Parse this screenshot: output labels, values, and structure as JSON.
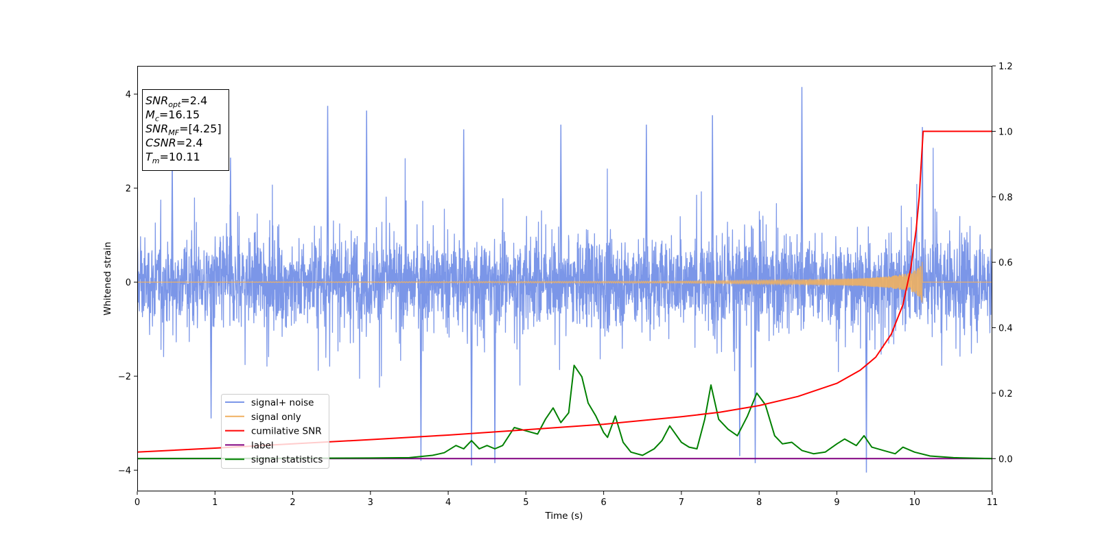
{
  "chart_data": {
    "type": "line",
    "title": "",
    "xlabel": "Time (s)",
    "ylabel_left": "Whitened strain",
    "ylabel_right": "",
    "xlim": [
      0,
      11
    ],
    "ylim_left": [
      -4.45,
      4.6
    ],
    "ylim_right": [
      -0.1,
      1.2
    ],
    "x_ticks": [
      0,
      1,
      2,
      3,
      4,
      5,
      6,
      7,
      8,
      9,
      10,
      11
    ],
    "y_ticks_left": [
      -4,
      -2,
      0,
      2,
      4
    ],
    "y_ticks_right": [
      0.0,
      0.2,
      0.4,
      0.6,
      0.8,
      1.0,
      1.2
    ],
    "x_tick_labels": [
      "0",
      "1",
      "2",
      "3",
      "4",
      "5",
      "6",
      "7",
      "8",
      "9",
      "10",
      "11"
    ],
    "y_tick_labels_left": [
      "−4",
      "−2",
      "0",
      "2",
      "4"
    ],
    "y_tick_labels_right": [
      "0.0",
      "0.2",
      "0.4",
      "0.6",
      "0.8",
      "1.0",
      "1.2"
    ],
    "grid": false,
    "legend_position": "lower-left",
    "colors": {
      "noise": "#7b96e8",
      "signal": "#f0b060",
      "cumulative": "#ff0000",
      "label": "#800080",
      "statistics": "#008000"
    },
    "series": [
      {
        "name": "signal+ noise",
        "axis": "left",
        "description_values": "dense noise, roughly ±1.5 envelope with spikes up to 4.15 (t≈8.55) and down to -4.05 (t≈9.38)",
        "spikes": [
          {
            "x": 0.45,
            "y": 2.7
          },
          {
            "x": 1.2,
            "y": 2.65
          },
          {
            "x": 2.45,
            "y": 3.75
          },
          {
            "x": 2.95,
            "y": 3.65
          },
          {
            "x": 4.2,
            "y": 3.25
          },
          {
            "x": 5.45,
            "y": 3.35
          },
          {
            "x": 6.55,
            "y": 3.35
          },
          {
            "x": 7.4,
            "y": 3.55
          },
          {
            "x": 8.55,
            "y": 4.15
          },
          {
            "x": 10.1,
            "y": 3.3
          },
          {
            "x": 0.95,
            "y": -2.9
          },
          {
            "x": 3.65,
            "y": -3.8
          },
          {
            "x": 4.3,
            "y": -3.9
          },
          {
            "x": 4.6,
            "y": -3.85
          },
          {
            "x": 7.75,
            "y": -3.7
          },
          {
            "x": 7.95,
            "y": -3.85
          },
          {
            "x": 9.38,
            "y": -4.05
          }
        ]
      },
      {
        "name": "signal only",
        "axis": "left",
        "description_values": "chirp, amplitude ~0 until t≈7, growing to ±0.4 at t≈10.1, then zero",
        "envelope": [
          {
            "x": 0,
            "y": 0.0
          },
          {
            "x": 7.0,
            "y": 0.02
          },
          {
            "x": 8.5,
            "y": 0.05
          },
          {
            "x": 9.3,
            "y": 0.08
          },
          {
            "x": 9.7,
            "y": 0.13
          },
          {
            "x": 9.95,
            "y": 0.2
          },
          {
            "x": 10.05,
            "y": 0.3
          },
          {
            "x": 10.1,
            "y": 0.45
          }
        ]
      },
      {
        "name": "cumilative SNR",
        "axis": "right",
        "points": [
          {
            "x": 0,
            "y": 0.02
          },
          {
            "x": 1,
            "y": 0.032
          },
          {
            "x": 2,
            "y": 0.045
          },
          {
            "x": 3,
            "y": 0.058
          },
          {
            "x": 4,
            "y": 0.072
          },
          {
            "x": 5,
            "y": 0.088
          },
          {
            "x": 6,
            "y": 0.105
          },
          {
            "x": 7,
            "y": 0.128
          },
          {
            "x": 7.5,
            "y": 0.142
          },
          {
            "x": 8,
            "y": 0.162
          },
          {
            "x": 8.5,
            "y": 0.19
          },
          {
            "x": 9,
            "y": 0.23
          },
          {
            "x": 9.3,
            "y": 0.27
          },
          {
            "x": 9.5,
            "y": 0.31
          },
          {
            "x": 9.7,
            "y": 0.38
          },
          {
            "x": 9.85,
            "y": 0.47
          },
          {
            "x": 9.95,
            "y": 0.58
          },
          {
            "x": 10.02,
            "y": 0.7
          },
          {
            "x": 10.06,
            "y": 0.8
          },
          {
            "x": 10.09,
            "y": 0.92
          },
          {
            "x": 10.11,
            "y": 1.0
          },
          {
            "x": 11,
            "y": 1.0
          }
        ]
      },
      {
        "name": "label",
        "axis": "right",
        "points": [
          {
            "x": 0,
            "y": 0.0
          },
          {
            "x": 11,
            "y": 0.0
          }
        ]
      },
      {
        "name": "signal statistics",
        "axis": "right",
        "points": [
          {
            "x": 0,
            "y": 0.0
          },
          {
            "x": 3.0,
            "y": 0.002
          },
          {
            "x": 3.5,
            "y": 0.003
          },
          {
            "x": 3.8,
            "y": 0.01
          },
          {
            "x": 3.95,
            "y": 0.018
          },
          {
            "x": 4.1,
            "y": 0.04
          },
          {
            "x": 4.2,
            "y": 0.03
          },
          {
            "x": 4.3,
            "y": 0.055
          },
          {
            "x": 4.4,
            "y": 0.03
          },
          {
            "x": 4.5,
            "y": 0.04
          },
          {
            "x": 4.6,
            "y": 0.03
          },
          {
            "x": 4.7,
            "y": 0.04
          },
          {
            "x": 4.85,
            "y": 0.095
          },
          {
            "x": 5.0,
            "y": 0.085
          },
          {
            "x": 5.15,
            "y": 0.075
          },
          {
            "x": 5.25,
            "y": 0.12
          },
          {
            "x": 5.35,
            "y": 0.155
          },
          {
            "x": 5.45,
            "y": 0.11
          },
          {
            "x": 5.55,
            "y": 0.14
          },
          {
            "x": 5.62,
            "y": 0.285
          },
          {
            "x": 5.72,
            "y": 0.25
          },
          {
            "x": 5.8,
            "y": 0.17
          },
          {
            "x": 5.9,
            "y": 0.13
          },
          {
            "x": 6.0,
            "y": 0.08
          },
          {
            "x": 6.05,
            "y": 0.065
          },
          {
            "x": 6.15,
            "y": 0.13
          },
          {
            "x": 6.25,
            "y": 0.05
          },
          {
            "x": 6.35,
            "y": 0.02
          },
          {
            "x": 6.5,
            "y": 0.01
          },
          {
            "x": 6.65,
            "y": 0.03
          },
          {
            "x": 6.75,
            "y": 0.055
          },
          {
            "x": 6.85,
            "y": 0.1
          },
          {
            "x": 7.0,
            "y": 0.05
          },
          {
            "x": 7.1,
            "y": 0.035
          },
          {
            "x": 7.2,
            "y": 0.03
          },
          {
            "x": 7.3,
            "y": 0.12
          },
          {
            "x": 7.38,
            "y": 0.225
          },
          {
            "x": 7.48,
            "y": 0.12
          },
          {
            "x": 7.6,
            "y": 0.09
          },
          {
            "x": 7.72,
            "y": 0.07
          },
          {
            "x": 7.85,
            "y": 0.13
          },
          {
            "x": 7.97,
            "y": 0.2
          },
          {
            "x": 8.08,
            "y": 0.165
          },
          {
            "x": 8.2,
            "y": 0.07
          },
          {
            "x": 8.3,
            "y": 0.045
          },
          {
            "x": 8.42,
            "y": 0.05
          },
          {
            "x": 8.55,
            "y": 0.025
          },
          {
            "x": 8.7,
            "y": 0.015
          },
          {
            "x": 8.85,
            "y": 0.02
          },
          {
            "x": 9.0,
            "y": 0.045
          },
          {
            "x": 9.1,
            "y": 0.06
          },
          {
            "x": 9.25,
            "y": 0.04
          },
          {
            "x": 9.35,
            "y": 0.07
          },
          {
            "x": 9.45,
            "y": 0.035
          },
          {
            "x": 9.6,
            "y": 0.025
          },
          {
            "x": 9.75,
            "y": 0.015
          },
          {
            "x": 9.85,
            "y": 0.035
          },
          {
            "x": 10.0,
            "y": 0.02
          },
          {
            "x": 10.2,
            "y": 0.008
          },
          {
            "x": 10.5,
            "y": 0.003
          },
          {
            "x": 11,
            "y": 0.0
          }
        ]
      }
    ],
    "legend": [
      {
        "label": "signal+ noise",
        "color": "#7b96e8"
      },
      {
        "label": "signal only",
        "color": "#f0b060"
      },
      {
        "label": "cumilative SNR",
        "color": "#ff0000"
      },
      {
        "label": "label",
        "color": "#800080"
      },
      {
        "label": "signal statistics",
        "color": "#008000"
      }
    ],
    "annotation_box": {
      "lines": [
        {
          "var": "SNR",
          "sub": "opt",
          "rest": "=2.4"
        },
        {
          "var": "M",
          "sub": "c",
          "rest": "=16.15"
        },
        {
          "var": "SNR",
          "sub": "MF",
          "rest": "=[4.25]"
        },
        {
          "var": "CSNR",
          "sub": "",
          "rest": "=2.4"
        },
        {
          "var": "T",
          "sub": "m",
          "rest": "=10.11"
        }
      ]
    }
  }
}
